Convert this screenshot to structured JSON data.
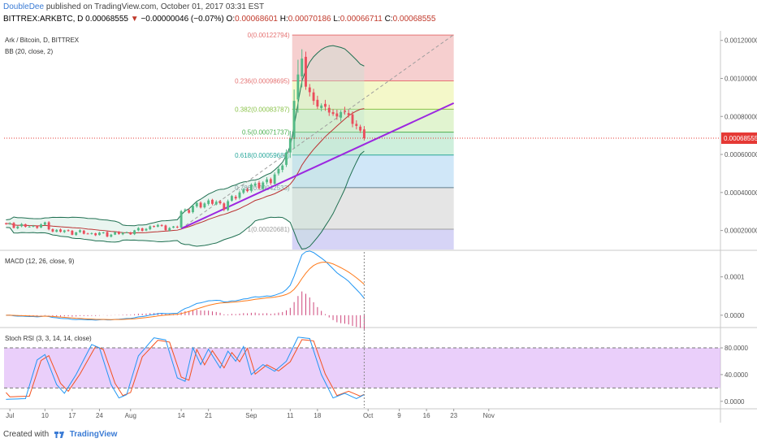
{
  "header": {
    "author": "DoubleDee",
    "published_text": "published on TradingView.com, October 01, 2017 03:31 EST",
    "symbol": "BITTREX:ARKBTC, D",
    "last": "0.00068555",
    "change": "−0.00000046 (−0.07%)",
    "o_label": "O:",
    "o_value": "0.00068601",
    "h_label": "H:",
    "h_value": "0.00070186",
    "l_label": "L:",
    "l_value": "0.00066711",
    "c_label": "C:",
    "c_value": "0.00068555"
  },
  "footer": {
    "created_with": "Created with",
    "brand": "TradingView"
  },
  "colors": {
    "up": "#53b987",
    "down": "#eb4d5c",
    "bb": "#1f6f51",
    "trend": "#9c27e0",
    "macd": "#2196f3",
    "signal": "#ff7a1a",
    "hist": "#c2185b",
    "stoch_k": "#2196f3",
    "stoch_d": "#f4511e",
    "stoch_band": "#d9a8f5",
    "price_line": "#e53935"
  },
  "chart_data": [
    {
      "type": "candlestick",
      "title": "Ark / Bitcoin, D, BITTREX",
      "indicator": "BB (20, close, 2)",
      "ylim": [
        0.0001,
        0.00125
      ],
      "y_ticks": [
        "0.00120000",
        "0.00100000",
        "0.00080000",
        "0.00060000",
        "0.00040000",
        "0.00020000"
      ],
      "y_tick_values": [
        0.0012,
        0.001,
        0.0008,
        0.0006,
        0.0004,
        0.0002
      ],
      "last_price_label": "0.00068555",
      "last_price": 0.00068555,
      "fib_levels": [
        {
          "label": "0(0.00122794)",
          "value": 0.00122794,
          "fill": "#f4c7c7",
          "line": "#e57373"
        },
        {
          "label": "0.236(0.00098695)",
          "value": 0.00098695,
          "fill": "#f2f7c0",
          "line": "#e57373"
        },
        {
          "label": "0.382(0.00083787)",
          "value": 0.00083787,
          "fill": "#dcf2c8",
          "line": "#8bc34a"
        },
        {
          "label": "0.5(0.00071737)",
          "value": 0.00071737,
          "fill": "#c6ecd6",
          "line": "#4caf50"
        },
        {
          "label": "0.618(0.00059688)",
          "value": 0.00059688,
          "fill": "#c8e3f7",
          "line": "#26a69a"
        },
        {
          "label": "0.786(0.00042533)",
          "value": 0.00042533,
          "fill": "#e0e0e0",
          "line": "#607d8b"
        },
        {
          "label": "1(0.00020681)",
          "value": 0.00020681,
          "fill": "#cfcdf4",
          "line": "#9e9e9e"
        }
      ],
      "fib_start_day": 74,
      "x_axis_days": 184,
      "x_ticks": [
        {
          "label": "Jul",
          "day": 1
        },
        {
          "label": "10",
          "day": 10
        },
        {
          "label": "17",
          "day": 17
        },
        {
          "label": "24",
          "day": 24
        },
        {
          "label": "Aug",
          "day": 32
        },
        {
          "label": "14",
          "day": 45
        },
        {
          "label": "21",
          "day": 52
        },
        {
          "label": "Sep",
          "day": 63
        },
        {
          "label": "11",
          "day": 73
        },
        {
          "label": "18",
          "day": 80
        },
        {
          "label": "Oct",
          "day": 93
        },
        {
          "label": "9",
          "day": 101
        },
        {
          "label": "16",
          "day": 108
        },
        {
          "label": "23",
          "day": 115
        },
        {
          "label": "Nov",
          "day": 124
        }
      ],
      "trend_line": [
        {
          "day": 45,
          "value": 0.00021
        },
        {
          "day": 115,
          "value": 0.00087
        }
      ],
      "dashed_line": [
        {
          "day": 45,
          "value": 0.00021
        },
        {
          "day": 115,
          "value": 0.00123
        }
      ]
    },
    {
      "type": "line",
      "title": "MACD (12, 26, close, 9)",
      "ylim": [
        -3e-05,
        0.000165
      ],
      "y_ticks": [
        "0.0001",
        "0.0000"
      ],
      "y_tick_values": [
        0.0001,
        0.0
      ]
    },
    {
      "type": "line",
      "title": "Stoch RSI (3, 3, 14, 14, close)",
      "ylim": [
        -10,
        108
      ],
      "y_ticks": [
        "80.0000",
        "40.0000",
        "0.0000"
      ],
      "y_tick_values": [
        80,
        40,
        0
      ],
      "band": [
        20,
        80
      ]
    }
  ]
}
